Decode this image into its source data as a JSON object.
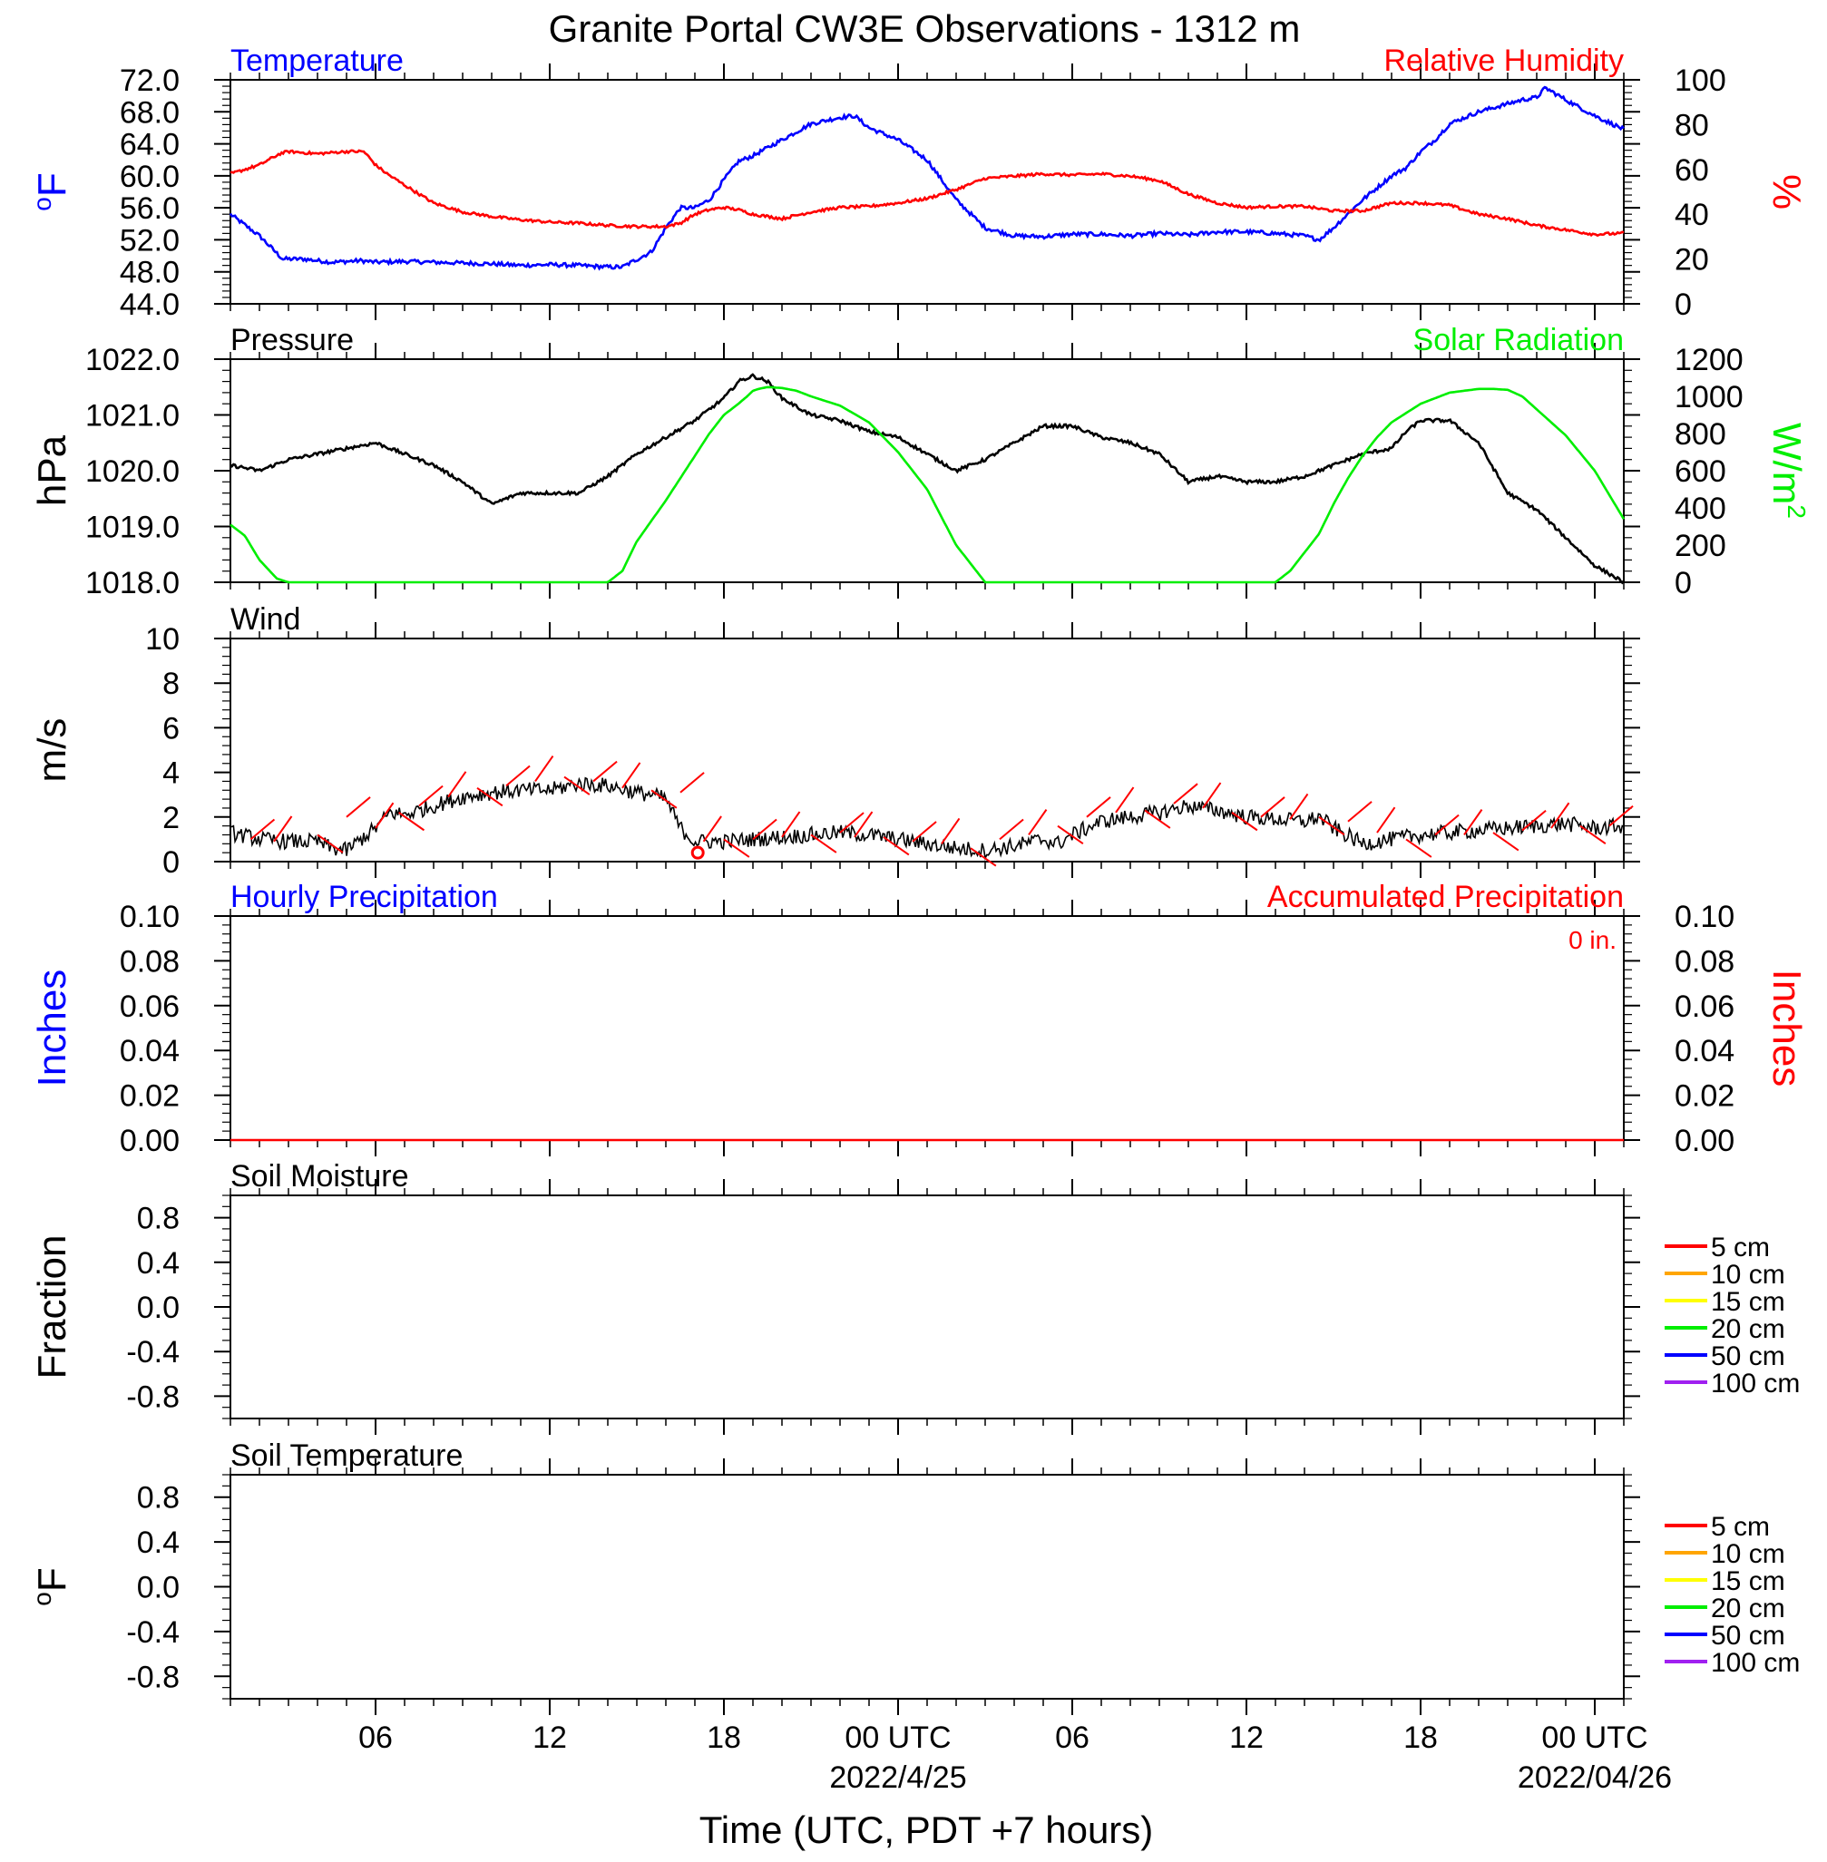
{
  "title": "Granite Portal CW3E Observations - 1312 m",
  "colors": {
    "blue": "#0000ff",
    "red": "#ff0000",
    "green": "#00ee00",
    "black": "#000000",
    "orange": "#ffa500",
    "yellow": "#ffff00",
    "purple": "#a020f0"
  },
  "x_axis": {
    "label": "Time (UTC, PDT +7 hours)",
    "range_hours": [
      0,
      48
    ],
    "ticks": [
      {
        "h": 5,
        "label": "06",
        "date": ""
      },
      {
        "h": 11,
        "label": "12",
        "date": ""
      },
      {
        "h": 17,
        "label": "18",
        "date": ""
      },
      {
        "h": 23,
        "label": "00 UTC",
        "date": "2022/4/25"
      },
      {
        "h": 29,
        "label": "06",
        "date": ""
      },
      {
        "h": 35,
        "label": "12",
        "date": ""
      },
      {
        "h": 41,
        "label": "18",
        "date": ""
      },
      {
        "h": 47,
        "label": "00 UTC",
        "date": "2022/04/26"
      }
    ]
  },
  "chart_data": [
    {
      "type": "line",
      "panel": "temperature_humidity",
      "title_left": "Temperature",
      "title_right": "Relative Humidity",
      "ylabel_left": "oF",
      "ylabel_right": "%",
      "ylim_left": [
        44,
        72
      ],
      "yticks_left": [
        "72.0",
        "68.0",
        "64.0",
        "60.0",
        "56.0",
        "52.0",
        "48.0",
        "44.0"
      ],
      "ylim_right": [
        0,
        100
      ],
      "yticks_right": [
        "100",
        "80",
        "60",
        "40",
        "20",
        "0"
      ],
      "series": [
        {
          "name": "Temperature",
          "axis": "left",
          "color": "#0000ff",
          "x": [
            0,
            1,
            1.8,
            2.5,
            3.5,
            4.5,
            5,
            6,
            7,
            8,
            9,
            10,
            11,
            12,
            13,
            13.5,
            14.5,
            15,
            15.5,
            16,
            16.5,
            17,
            17.5,
            18,
            19,
            20,
            21,
            21.5,
            22,
            23,
            24,
            25,
            26,
            27,
            28,
            29,
            30,
            31,
            32,
            33,
            34,
            35,
            36,
            37,
            37.5,
            38,
            39,
            40,
            40.5,
            41,
            41.5,
            42,
            43,
            44,
            44.5,
            45,
            45.3,
            46,
            47,
            48
          ],
          "y": [
            55.2,
            52.5,
            49.6,
            49.6,
            49.2,
            49.4,
            49.2,
            49.3,
            49.2,
            49.1,
            49.0,
            48.8,
            48.9,
            48.8,
            48.6,
            48.6,
            50.5,
            53.5,
            56.0,
            56.0,
            57.0,
            59.5,
            61.8,
            62.5,
            64.5,
            66.5,
            67.3,
            67.5,
            66.0,
            64.5,
            62.0,
            57.0,
            53.5,
            52.5,
            52.4,
            52.7,
            52.7,
            52.5,
            52.8,
            52.6,
            53.0,
            53.0,
            52.8,
            52.5,
            52.0,
            53.5,
            57.0,
            60.0,
            61.0,
            63.0,
            64.5,
            66.5,
            68.0,
            69.0,
            69.5,
            69.8,
            71.0,
            69.5,
            67.5,
            65.8
          ]
        },
        {
          "name": "Relative Humidity",
          "axis": "right",
          "color": "#ff0000",
          "x": [
            0,
            1,
            1.7,
            2,
            3,
            4,
            4.6,
            5,
            5.4,
            6,
            7,
            8,
            9,
            10,
            11,
            12,
            13,
            14,
            14.5,
            15,
            15.5,
            16,
            16.5,
            17,
            17.5,
            18,
            19,
            20,
            21,
            22,
            23,
            24,
            25,
            26,
            27,
            28,
            29,
            30,
            31,
            32,
            33,
            34,
            35,
            36,
            37,
            38,
            39,
            40,
            41,
            42,
            43,
            44,
            45,
            46,
            47,
            48
          ],
          "y": [
            58,
            62,
            67,
            68,
            67,
            68,
            68,
            62,
            58,
            53,
            45,
            41,
            39,
            37.5,
            36.5,
            36,
            35,
            34.5,
            34.5,
            34.5,
            36,
            40,
            42,
            43,
            42,
            40,
            38,
            41,
            43,
            43.5,
            45,
            47,
            51,
            56,
            57,
            58,
            57.5,
            58,
            57,
            55,
            49,
            45,
            43,
            43.5,
            43.5,
            41.5,
            41.5,
            45,
            45,
            44,
            40,
            38,
            35,
            33,
            31,
            31.5
          ]
        }
      ]
    },
    {
      "type": "line",
      "panel": "pressure_solar",
      "title_left": "Pressure",
      "title_right": "Solar Radiation",
      "ylabel_left": "hPa",
      "ylabel_right": "W/m2",
      "ylim_left": [
        1018,
        1022
      ],
      "yticks_left": [
        "1022.0",
        "1021.0",
        "1020.0",
        "1019.0",
        "1018.0"
      ],
      "ylim_right": [
        0,
        1200
      ],
      "yticks_right": [
        "1200",
        "1000",
        "800",
        "600",
        "400",
        "200",
        "0"
      ],
      "series": [
        {
          "name": "Pressure",
          "axis": "left",
          "color": "#000000",
          "x": [
            0,
            1,
            2,
            3,
            4,
            5,
            6,
            7,
            8,
            8.5,
            9,
            10,
            11,
            12,
            13,
            14,
            15,
            16,
            17,
            17.5,
            18,
            18.5,
            19,
            20,
            21,
            22,
            23,
            24,
            25,
            26,
            27,
            28,
            29,
            30,
            31,
            32,
            33,
            34,
            35,
            36,
            37,
            38,
            39,
            40,
            40.5,
            41,
            41.5,
            42,
            43,
            44,
            45,
            46,
            47,
            48
          ],
          "y": [
            1020.1,
            1020.0,
            1020.2,
            1020.3,
            1020.4,
            1020.5,
            1020.3,
            1020.1,
            1019.8,
            1019.6,
            1019.4,
            1019.6,
            1019.6,
            1019.6,
            1019.9,
            1020.3,
            1020.6,
            1020.9,
            1021.3,
            1021.6,
            1021.7,
            1021.6,
            1021.3,
            1021.0,
            1020.9,
            1020.7,
            1020.6,
            1020.3,
            1020.0,
            1020.2,
            1020.5,
            1020.8,
            1020.8,
            1020.6,
            1020.5,
            1020.3,
            1019.8,
            1019.9,
            1019.8,
            1019.8,
            1019.9,
            1020.1,
            1020.3,
            1020.4,
            1020.7,
            1020.9,
            1020.9,
            1020.9,
            1020.5,
            1019.6,
            1019.3,
            1018.8,
            1018.3,
            1018.0
          ]
        },
        {
          "name": "Solar Radiation",
          "axis": "right",
          "color": "#00ee00",
          "x": [
            0,
            0.5,
            1,
            1.6,
            2,
            5,
            10,
            12,
            13,
            13.5,
            14,
            14.5,
            15,
            15.5,
            16,
            16.5,
            17,
            17.5,
            17.8,
            18,
            18.2,
            18.5,
            19,
            19.5,
            20,
            21,
            22,
            23,
            24,
            24.5,
            25,
            26,
            30,
            34,
            35,
            36,
            36.5,
            37,
            37.5,
            38,
            38.5,
            39,
            39.5,
            40,
            41,
            42,
            43,
            43.5,
            44,
            44.5,
            45,
            46,
            47,
            48
          ],
          "y": [
            310,
            250,
            120,
            20,
            0,
            0,
            0,
            0,
            0,
            60,
            220,
            330,
            440,
            560,
            680,
            800,
            900,
            960,
            1000,
            1030,
            1040,
            1050,
            1045,
            1030,
            1000,
            950,
            860,
            700,
            500,
            350,
            200,
            0,
            0,
            0,
            0,
            0,
            60,
            160,
            260,
            420,
            560,
            680,
            780,
            860,
            960,
            1020,
            1040,
            1040,
            1035,
            1000,
            930,
            790,
            600,
            340
          ]
        }
      ]
    },
    {
      "type": "line",
      "panel": "wind",
      "title_left": "Wind",
      "ylabel_left": "m/s",
      "ylim_left": [
        0,
        10
      ],
      "yticks_left": [
        "10",
        "8",
        "6",
        "4",
        "2",
        "0"
      ],
      "series": [
        {
          "name": "Wind",
          "axis": "left",
          "color": "#000000",
          "x": [
            0,
            1,
            2,
            3,
            3.5,
            4,
            5,
            5.5,
            6,
            7,
            8,
            9,
            10,
            11,
            12,
            13,
            14,
            14.5,
            15,
            15.5,
            16,
            17,
            18,
            19,
            20,
            21,
            22,
            23,
            24,
            25,
            26,
            27,
            28,
            28.5,
            29,
            30,
            31,
            32,
            33,
            34,
            35,
            36,
            37,
            37.5,
            38,
            39,
            40,
            41,
            42,
            43,
            44,
            45,
            46,
            47,
            48
          ],
          "y": [
            1.3,
            1.0,
            0.9,
            0.9,
            0.6,
            0.5,
            1.5,
            2.2,
            2.1,
            2.5,
            2.9,
            3.1,
            3.2,
            3.2,
            3.5,
            3.4,
            3.1,
            3.0,
            2.8,
            1.5,
            0.9,
            0.9,
            1.0,
            1.1,
            1.2,
            1.3,
            1.2,
            1.0,
            0.8,
            0.6,
            0.5,
            0.7,
            1.0,
            0.8,
            1.2,
            1.8,
            2.0,
            2.2,
            2.5,
            2.3,
            2.0,
            1.9,
            1.8,
            2.0,
            1.5,
            0.8,
            1.0,
            1.2,
            1.3,
            1.4,
            1.5,
            1.6,
            1.7,
            1.5,
            1.6
          ]
        },
        {
          "name": "Wind barbs",
          "axis": "left",
          "color": "#ff0000",
          "x": [
            0.7,
            1.5,
            3,
            4,
            5,
            5.8,
            6.5,
            7.5,
            8.5,
            9.5,
            10.5,
            11.5,
            12.5,
            13.5,
            14.5,
            15.5,
            16.3,
            17,
            18,
            19,
            20,
            21,
            21.5,
            22.5,
            23.5,
            24.5,
            25.5,
            26.5,
            27.5,
            28.5,
            29.5,
            30.5,
            31.5,
            32.5,
            33.5,
            34.5,
            35.5,
            36.5,
            37.5,
            38.5,
            39.5,
            40.5,
            41.5,
            42.5,
            43.5,
            44.5,
            45.5,
            46.5,
            47.5
          ],
          "y": [
            1.0,
            0.9,
            1.2,
            2.0,
            1.5,
            2.2,
            2.5,
            2.9,
            3.3,
            3.4,
            3.6,
            3.8,
            3.6,
            3.3,
            3.2,
            3.1,
            0.9,
            1.0,
            1.0,
            1.1,
            1.2,
            1.3,
            1.1,
            1.1,
            0.9,
            0.8,
            0.6,
            1.0,
            1.2,
            1.6,
            2.0,
            2.2,
            2.3,
            2.6,
            2.4,
            2.2,
            2.0,
            1.9,
            2.0,
            1.8,
            1.3,
            1.0,
            1.2,
            1.2,
            1.3,
            1.4,
            1.5,
            1.6,
            1.6
          ]
        }
      ]
    },
    {
      "type": "line",
      "panel": "precipitation",
      "title_left": "Hourly Precipitation",
      "title_right": "Accumulated Precipitation",
      "annotation": "0 in.",
      "ylabel_left": "Inches",
      "ylabel_right": "Inches",
      "ylim_left": [
        0,
        0.1
      ],
      "yticks_left": [
        "0.10",
        "0.08",
        "0.06",
        "0.04",
        "0.02",
        "0.00"
      ],
      "ylim_right": [
        0,
        0.1
      ],
      "yticks_right": [
        "0.10",
        "0.08",
        "0.06",
        "0.04",
        "0.02",
        "0.00"
      ],
      "series": [
        {
          "name": "Accumulated Precipitation",
          "axis": "right",
          "color": "#ff0000",
          "x": [
            0,
            48
          ],
          "y": [
            0,
            0
          ]
        }
      ]
    },
    {
      "type": "line",
      "panel": "soil_moisture",
      "title_left": "Soil Moisture",
      "ylabel_left": "Fraction",
      "ylim_left": [
        -1,
        1
      ],
      "yticks_left": [
        "0.8",
        "0.4",
        "0.0",
        "-0.4",
        "-0.8"
      ],
      "legend": [
        {
          "label": "5 cm",
          "color": "#ff0000"
        },
        {
          "label": "10 cm",
          "color": "#ffa500"
        },
        {
          "label": "15 cm",
          "color": "#ffff00"
        },
        {
          "label": "20 cm",
          "color": "#00ee00"
        },
        {
          "label": "50 cm",
          "color": "#0000ff"
        },
        {
          "label": "100 cm",
          "color": "#a020f0"
        }
      ],
      "series": []
    },
    {
      "type": "line",
      "panel": "soil_temperature",
      "title_left": "Soil Temperature",
      "ylabel_left": "oF",
      "ylim_left": [
        -1,
        1
      ],
      "yticks_left": [
        "0.8",
        "0.4",
        "0.0",
        "-0.4",
        "-0.8"
      ],
      "legend": [
        {
          "label": "5 cm",
          "color": "#ff0000"
        },
        {
          "label": "10 cm",
          "color": "#ffa500"
        },
        {
          "label": "15 cm",
          "color": "#ffff00"
        },
        {
          "label": "20 cm",
          "color": "#00ee00"
        },
        {
          "label": "50 cm",
          "color": "#0000ff"
        },
        {
          "label": "100 cm",
          "color": "#a020f0"
        }
      ],
      "series": []
    }
  ]
}
